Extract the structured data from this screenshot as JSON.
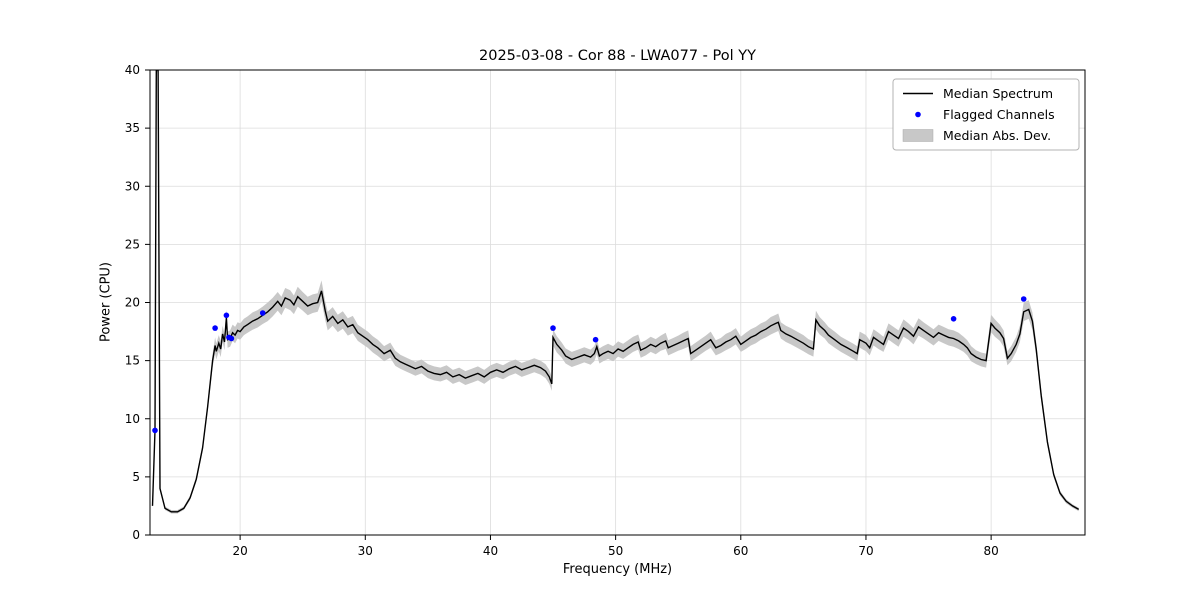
{
  "chart_data": {
    "type": "line",
    "title": "2025-03-08 - Cor 88 - LWA077 - Pol YY",
    "xlabel": "Frequency (MHz)",
    "ylabel": "Power (CPU)",
    "xlim": [
      12.8,
      87.5
    ],
    "ylim": [
      0,
      40
    ],
    "xticks": [
      20,
      30,
      40,
      50,
      60,
      70,
      80
    ],
    "yticks": [
      0,
      5,
      10,
      15,
      20,
      25,
      30,
      35,
      40
    ],
    "grid": true,
    "colors": {
      "line": "#000000",
      "flagged": "#0000ff",
      "band": "#c8c8c8",
      "grid": "#dcdcdc"
    },
    "legend": {
      "position": "upper right",
      "entries": [
        {
          "label": "Median Spectrum",
          "type": "line",
          "color": "#000000"
        },
        {
          "label": "Flagged Channels",
          "type": "dot",
          "color": "#0000ff"
        },
        {
          "label": "Median Abs. Dev.",
          "type": "patch",
          "color": "#c8c8c8"
        }
      ]
    },
    "series": [
      {
        "name": "Median Spectrum",
        "points_format": [
          "freq_mhz",
          "power_cpu",
          "mad"
        ],
        "points": [
          [
            13.0,
            2.5,
            0.2
          ],
          [
            13.2,
            9.0,
            0.3
          ],
          [
            13.3,
            40,
            0.2
          ],
          [
            13.45,
            40,
            0.2
          ],
          [
            13.6,
            4.0,
            0.2
          ],
          [
            14.0,
            2.3,
            0.15
          ],
          [
            14.5,
            2.0,
            0.15
          ],
          [
            15.0,
            2.0,
            0.15
          ],
          [
            15.5,
            2.3,
            0.15
          ],
          [
            16.0,
            3.2,
            0.2
          ],
          [
            16.5,
            4.8,
            0.25
          ],
          [
            17.0,
            7.5,
            0.3
          ],
          [
            17.4,
            11.0,
            0.4
          ],
          [
            17.8,
            15.0,
            0.6
          ],
          [
            18.0,
            16.3,
            0.7
          ],
          [
            18.1,
            15.8,
            0.7
          ],
          [
            18.3,
            16.5,
            0.7
          ],
          [
            18.45,
            16.0,
            0.7
          ],
          [
            18.6,
            17.3,
            0.7
          ],
          [
            18.75,
            16.6,
            0.7
          ],
          [
            18.9,
            18.7,
            0.7
          ],
          [
            19.0,
            16.8,
            0.7
          ],
          [
            19.2,
            16.9,
            0.7
          ],
          [
            19.4,
            17.4,
            0.7
          ],
          [
            19.6,
            17.2,
            0.7
          ],
          [
            19.8,
            17.6,
            0.7
          ],
          [
            20.0,
            17.5,
            0.7
          ],
          [
            20.3,
            17.9,
            0.7
          ],
          [
            20.6,
            18.1,
            0.7
          ],
          [
            21.0,
            18.4,
            0.75
          ],
          [
            21.4,
            18.6,
            0.75
          ],
          [
            21.8,
            18.9,
            0.75
          ],
          [
            22.2,
            19.2,
            0.8
          ],
          [
            22.6,
            19.6,
            0.8
          ],
          [
            23.0,
            20.1,
            0.8
          ],
          [
            23.3,
            19.7,
            0.8
          ],
          [
            23.6,
            20.4,
            0.85
          ],
          [
            24.0,
            20.2,
            0.85
          ],
          [
            24.3,
            19.8,
            0.8
          ],
          [
            24.6,
            20.5,
            0.85
          ],
          [
            25.0,
            20.1,
            0.8
          ],
          [
            25.4,
            19.7,
            0.8
          ],
          [
            25.8,
            19.9,
            0.8
          ],
          [
            26.2,
            20.0,
            0.8
          ],
          [
            26.5,
            21.0,
            0.9
          ],
          [
            26.8,
            19.3,
            0.8
          ],
          [
            27.0,
            18.4,
            0.8
          ],
          [
            27.4,
            18.8,
            0.8
          ],
          [
            27.8,
            18.2,
            0.75
          ],
          [
            28.2,
            18.5,
            0.75
          ],
          [
            28.6,
            17.9,
            0.75
          ],
          [
            29.0,
            18.1,
            0.75
          ],
          [
            29.4,
            17.4,
            0.7
          ],
          [
            29.8,
            17.1,
            0.7
          ],
          [
            30.2,
            16.8,
            0.7
          ],
          [
            30.6,
            16.4,
            0.7
          ],
          [
            31.0,
            16.1,
            0.7
          ],
          [
            31.5,
            15.6,
            0.65
          ],
          [
            32.0,
            15.9,
            0.65
          ],
          [
            32.4,
            15.2,
            0.65
          ],
          [
            32.8,
            14.9,
            0.6
          ],
          [
            33.2,
            14.7,
            0.6
          ],
          [
            33.6,
            14.5,
            0.6
          ],
          [
            34.0,
            14.3,
            0.6
          ],
          [
            34.5,
            14.5,
            0.6
          ],
          [
            35.0,
            14.1,
            0.6
          ],
          [
            35.5,
            13.9,
            0.6
          ],
          [
            36.0,
            13.8,
            0.6
          ],
          [
            36.5,
            14.0,
            0.6
          ],
          [
            37.0,
            13.6,
            0.6
          ],
          [
            37.5,
            13.8,
            0.6
          ],
          [
            38.0,
            13.5,
            0.6
          ],
          [
            38.5,
            13.7,
            0.6
          ],
          [
            39.0,
            13.9,
            0.6
          ],
          [
            39.5,
            13.6,
            0.6
          ],
          [
            40.0,
            14.0,
            0.6
          ],
          [
            40.5,
            14.2,
            0.6
          ],
          [
            41.0,
            14.0,
            0.6
          ],
          [
            41.5,
            14.3,
            0.6
          ],
          [
            42.0,
            14.5,
            0.6
          ],
          [
            42.5,
            14.2,
            0.6
          ],
          [
            43.0,
            14.4,
            0.6
          ],
          [
            43.5,
            14.6,
            0.6
          ],
          [
            44.0,
            14.4,
            0.6
          ],
          [
            44.4,
            14.1,
            0.6
          ],
          [
            44.7,
            13.6,
            0.6
          ],
          [
            44.9,
            13.0,
            0.6
          ],
          [
            45.0,
            17.0,
            0.7
          ],
          [
            45.3,
            16.4,
            0.7
          ],
          [
            45.7,
            15.9,
            0.65
          ],
          [
            46.0,
            15.4,
            0.65
          ],
          [
            46.5,
            15.1,
            0.65
          ],
          [
            47.0,
            15.3,
            0.65
          ],
          [
            47.5,
            15.5,
            0.65
          ],
          [
            48.0,
            15.3,
            0.65
          ],
          [
            48.3,
            15.6,
            0.65
          ],
          [
            48.5,
            16.2,
            0.65
          ],
          [
            48.7,
            15.4,
            0.65
          ],
          [
            49.0,
            15.6,
            0.65
          ],
          [
            49.4,
            15.8,
            0.65
          ],
          [
            49.8,
            15.6,
            0.65
          ],
          [
            50.2,
            16.0,
            0.65
          ],
          [
            50.6,
            15.8,
            0.65
          ],
          [
            51.0,
            16.1,
            0.65
          ],
          [
            51.4,
            16.4,
            0.65
          ],
          [
            51.8,
            16.6,
            0.65
          ],
          [
            52.0,
            15.9,
            0.65
          ],
          [
            52.4,
            16.1,
            0.65
          ],
          [
            52.8,
            16.4,
            0.65
          ],
          [
            53.2,
            16.2,
            0.65
          ],
          [
            53.6,
            16.5,
            0.65
          ],
          [
            54.0,
            16.7,
            0.7
          ],
          [
            54.2,
            16.1,
            0.65
          ],
          [
            54.6,
            16.3,
            0.65
          ],
          [
            55.0,
            16.5,
            0.65
          ],
          [
            55.4,
            16.7,
            0.7
          ],
          [
            55.8,
            16.9,
            0.7
          ],
          [
            56.0,
            15.6,
            0.65
          ],
          [
            56.4,
            15.9,
            0.65
          ],
          [
            56.8,
            16.2,
            0.65
          ],
          [
            57.2,
            16.5,
            0.65
          ],
          [
            57.6,
            16.8,
            0.7
          ],
          [
            58.0,
            16.1,
            0.65
          ],
          [
            58.4,
            16.3,
            0.65
          ],
          [
            58.8,
            16.6,
            0.7
          ],
          [
            59.2,
            16.8,
            0.7
          ],
          [
            59.6,
            17.1,
            0.7
          ],
          [
            60.0,
            16.4,
            0.65
          ],
          [
            60.4,
            16.7,
            0.7
          ],
          [
            60.8,
            17.0,
            0.7
          ],
          [
            61.2,
            17.2,
            0.7
          ],
          [
            61.6,
            17.5,
            0.7
          ],
          [
            62.0,
            17.7,
            0.7
          ],
          [
            62.4,
            18.0,
            0.75
          ],
          [
            62.8,
            18.2,
            0.75
          ],
          [
            63.0,
            18.3,
            0.75
          ],
          [
            63.2,
            17.6,
            0.7
          ],
          [
            63.6,
            17.3,
            0.7
          ],
          [
            64.0,
            17.1,
            0.7
          ],
          [
            64.5,
            16.8,
            0.7
          ],
          [
            65.0,
            16.5,
            0.7
          ],
          [
            65.4,
            16.2,
            0.65
          ],
          [
            65.8,
            16.0,
            0.65
          ],
          [
            66.0,
            18.5,
            0.8
          ],
          [
            66.3,
            18.0,
            0.75
          ],
          [
            66.7,
            17.6,
            0.7
          ],
          [
            67.0,
            17.2,
            0.7
          ],
          [
            67.5,
            16.8,
            0.7
          ],
          [
            68.0,
            16.4,
            0.65
          ],
          [
            68.5,
            16.1,
            0.65
          ],
          [
            69.0,
            15.8,
            0.65
          ],
          [
            69.3,
            15.6,
            0.65
          ],
          [
            69.5,
            16.8,
            0.7
          ],
          [
            70.0,
            16.5,
            0.7
          ],
          [
            70.3,
            16.1,
            0.65
          ],
          [
            70.6,
            17.0,
            0.7
          ],
          [
            71.0,
            16.7,
            0.7
          ],
          [
            71.4,
            16.4,
            0.65
          ],
          [
            71.8,
            17.5,
            0.7
          ],
          [
            72.2,
            17.2,
            0.7
          ],
          [
            72.6,
            16.9,
            0.7
          ],
          [
            73.0,
            17.8,
            0.75
          ],
          [
            73.4,
            17.5,
            0.7
          ],
          [
            73.8,
            17.1,
            0.7
          ],
          [
            74.2,
            17.9,
            0.75
          ],
          [
            74.6,
            17.6,
            0.7
          ],
          [
            75.0,
            17.3,
            0.7
          ],
          [
            75.4,
            17.0,
            0.7
          ],
          [
            75.8,
            17.4,
            0.7
          ],
          [
            76.2,
            17.2,
            0.7
          ],
          [
            76.6,
            17.0,
            0.7
          ],
          [
            77.0,
            16.9,
            0.7
          ],
          [
            77.4,
            16.7,
            0.7
          ],
          [
            77.8,
            16.4,
            0.65
          ],
          [
            78.1,
            16.1,
            0.65
          ],
          [
            78.4,
            15.6,
            0.65
          ],
          [
            78.8,
            15.3,
            0.6
          ],
          [
            79.2,
            15.1,
            0.6
          ],
          [
            79.6,
            15.0,
            0.6
          ],
          [
            80.0,
            18.2,
            0.75
          ],
          [
            80.3,
            17.8,
            0.75
          ],
          [
            80.7,
            17.4,
            0.7
          ],
          [
            81.0,
            16.9,
            0.7
          ],
          [
            81.3,
            15.2,
            0.6
          ],
          [
            81.6,
            15.6,
            0.65
          ],
          [
            82.0,
            16.4,
            0.65
          ],
          [
            82.3,
            17.3,
            0.7
          ],
          [
            82.6,
            19.2,
            0.8
          ],
          [
            83.0,
            19.4,
            0.8
          ],
          [
            83.3,
            18.4,
            0.75
          ],
          [
            83.6,
            16.0,
            0.6
          ],
          [
            84.0,
            12.0,
            0.5
          ],
          [
            84.5,
            8.0,
            0.35
          ],
          [
            85.0,
            5.2,
            0.25
          ],
          [
            85.5,
            3.6,
            0.2
          ],
          [
            86.0,
            2.9,
            0.18
          ],
          [
            86.5,
            2.5,
            0.15
          ],
          [
            87.0,
            2.2,
            0.15
          ]
        ]
      }
    ],
    "flagged_channels": [
      [
        13.2,
        9.0
      ],
      [
        18.0,
        17.8
      ],
      [
        18.9,
        18.9
      ],
      [
        19.1,
        17.0
      ],
      [
        19.3,
        16.9
      ],
      [
        21.8,
        19.1
      ],
      [
        45.0,
        17.8
      ],
      [
        48.4,
        16.8
      ],
      [
        77.0,
        18.6
      ],
      [
        82.6,
        20.3
      ]
    ]
  }
}
